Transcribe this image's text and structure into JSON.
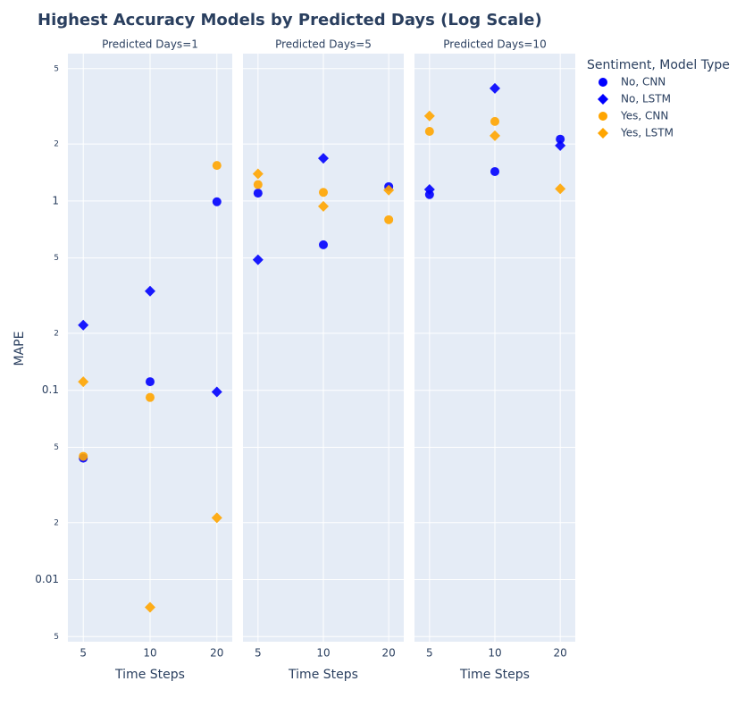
{
  "chart_data": {
    "type": "scatter",
    "title": "Highest Accuracy Models by Predicted Days (Log Scale)",
    "x_label": "Time Steps",
    "y_label": "MAPE",
    "legend_title": "Sentiment, Model Type",
    "facets": [
      "Predicted Days=1",
      "Predicted Days=5",
      "Predicted Days=10"
    ],
    "categories": [
      "5",
      "10",
      "20"
    ],
    "log_y": true,
    "grid": true,
    "ylim": [
      0.0047,
      6
    ],
    "yticks": [
      {
        "value": 0.005,
        "label": "5"
      },
      0.01,
      {
        "value": 0.02,
        "label": "2"
      },
      {
        "value": 0.05,
        "label": "5"
      },
      0.1,
      {
        "value": 0.2,
        "label": "2"
      },
      {
        "value": 0.5,
        "label": "5"
      },
      1,
      {
        "value": 2,
        "label": "2"
      },
      {
        "value": 5,
        "label": "5"
      }
    ],
    "series": [
      {
        "name": "No, CNN",
        "color": "#0000ff",
        "symbol": "circle",
        "values": [
          [
            0.0438,
            0.111,
            0.99
          ],
          [
            1.1,
            0.587,
            1.19
          ],
          [
            1.08,
            1.43,
            2.12
          ]
        ]
      },
      {
        "name": "No, LSTM",
        "color": "#0000ff",
        "symbol": "diamond",
        "values": [
          [
            0.221,
            0.334,
            0.098
          ],
          [
            0.489,
            1.68,
            null
          ],
          [
            1.15,
            3.93,
            1.96
          ]
        ]
      },
      {
        "name": "Yes, CNN",
        "color": "#ffa500",
        "symbol": "circle",
        "values": [
          [
            0.0448,
            0.0917,
            1.54
          ],
          [
            1.22,
            1.11,
            0.796
          ],
          [
            2.33,
            2.63,
            null
          ]
        ]
      },
      {
        "name": "Yes, LSTM",
        "color": "#ffa500",
        "symbol": "diamond",
        "values": [
          [
            0.111,
            0.00714,
            0.0212
          ],
          [
            1.39,
            0.937,
            1.14
          ],
          [
            2.81,
            2.21,
            1.16
          ]
        ]
      }
    ]
  }
}
